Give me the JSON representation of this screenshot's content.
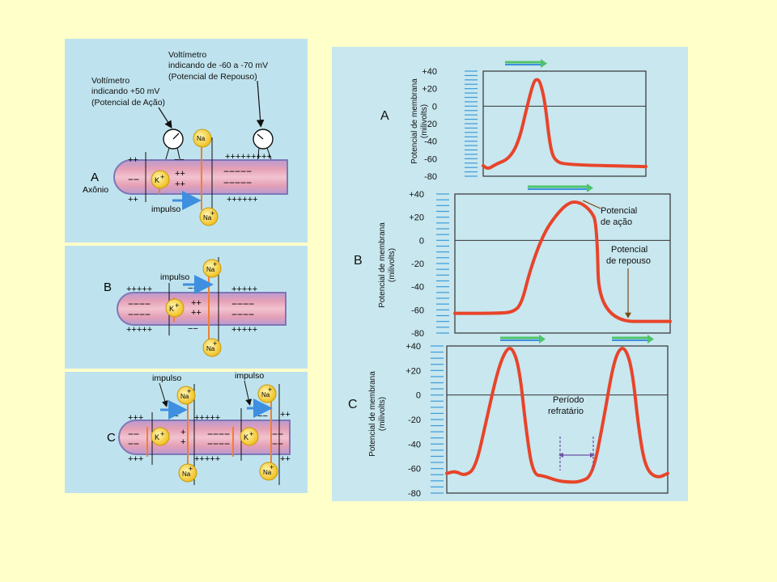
{
  "colors": {
    "background": "#ffffc9",
    "panel": "#bfe3ee",
    "axon_fill": "#e7a2b8",
    "axon_edge": "#7d77b6",
    "curve": "#e8442a",
    "ion": "#f3d43a",
    "arrow_green": "#4fc36a",
    "arrow_blue": "#3f8fe0"
  },
  "left_diagram": {
    "callout_rest": [
      "Voltímetro",
      "indicando de -60 a -70 mV",
      "(Potencial de Repouso)"
    ],
    "callout_action": [
      "Voltímetro",
      "indicando +50 mV",
      "(Potencial de Ação)"
    ],
    "axon_label": "Axônio",
    "panel_a": {
      "label": "A",
      "impulse": "impulso",
      "ion_k": "K",
      "ion_na": "Na",
      "top_left": "++",
      "top_right": "+++++++++",
      "mid_neg": "−−",
      "mid_pos1": "++",
      "mid_pos2": "++",
      "inside_neg": "−−−−−",
      "bot_left": "++",
      "bot_right": "++++++",
      "plus_sup": "+"
    },
    "panel_b": {
      "label": "B",
      "impulse": "impulso",
      "ion_k": "K",
      "ion_na": "Na",
      "top_left": "+++++",
      "top_right": "+++++",
      "top_neg": "−−",
      "in_left": "−−−−",
      "in_pos1": "++",
      "in_pos2": "++",
      "in_right": "−−−−",
      "bot_left": "+++++",
      "bot_right": "+++++",
      "bot_neg": "−−",
      "plus_sup": "+"
    },
    "panel_c": {
      "label": "C",
      "impulse_1": "impulso",
      "impulse_2": "impulso",
      "ion_k": "K",
      "ion_na": "Na",
      "top_left": "+++",
      "top_neg1": "−−",
      "top_mid": "+++++",
      "top_neg2": "−−",
      "top_right": "++",
      "in_left": "−−",
      "in_pos1": "+",
      "in_pos2": "+",
      "in_mid": "−−−−",
      "in_right": "−−",
      "bot_left": "+++",
      "bot_mid": "+++++",
      "bot_right": "++",
      "plus_sup": "+"
    }
  },
  "chart_data": [
    {
      "type": "line",
      "panel_label": "A",
      "ylabel": "Potencial de membrana (milivolts)",
      "yticks": [
        40,
        20,
        0,
        -20,
        -40,
        -60,
        -80
      ],
      "ytick_labels": [
        "+40",
        "+20",
        "0",
        "-20",
        "-40",
        "-60",
        "-80"
      ],
      "ylim": [
        -80,
        40
      ],
      "points": [
        [
          0,
          -68
        ],
        [
          3,
          -72
        ],
        [
          8,
          -66
        ],
        [
          16,
          -60
        ],
        [
          22,
          -40
        ],
        [
          27,
          0
        ],
        [
          31,
          28
        ],
        [
          33,
          31
        ],
        [
          35,
          28
        ],
        [
          38,
          5
        ],
        [
          41,
          -45
        ],
        [
          44,
          -63
        ],
        [
          52,
          -67
        ],
        [
          100,
          -69
        ]
      ],
      "annotations": []
    },
    {
      "type": "line",
      "panel_label": "B",
      "ylabel": "Potencial de membrana (milivolts)",
      "yticks": [
        40,
        20,
        0,
        -20,
        -40,
        -60,
        -80
      ],
      "ytick_labels": [
        "+40",
        "+20",
        "0",
        "-20",
        "-40",
        "-60",
        "-80"
      ],
      "ylim": [
        -80,
        40
      ],
      "points": [
        [
          0,
          -63
        ],
        [
          20,
          -63
        ],
        [
          27,
          -62
        ],
        [
          31,
          -55
        ],
        [
          35,
          -25
        ],
        [
          41,
          5
        ],
        [
          47,
          22
        ],
        [
          53,
          33
        ],
        [
          58,
          33
        ],
        [
          63,
          26
        ],
        [
          66,
          15
        ],
        [
          67,
          -70
        ],
        [
          100,
          -70
        ]
      ],
      "annotations": [
        {
          "label": "Potencial de ação",
          "x": 58,
          "y": 33
        },
        {
          "label": "Potencial de repouso",
          "x": 82,
          "y": -68
        }
      ]
    },
    {
      "type": "line",
      "panel_label": "C",
      "ylabel": "Potencial de membrana (milivolts)",
      "yticks": [
        40,
        20,
        0,
        -20,
        -40,
        -60,
        -80
      ],
      "ytick_labels": [
        "+40",
        "+20",
        "0",
        "-20",
        "-40",
        "-60",
        "-80"
      ],
      "ylim": [
        -80,
        40
      ],
      "points": [
        [
          0,
          -64
        ],
        [
          4,
          -62
        ],
        [
          8,
          -66
        ],
        [
          13,
          -60
        ],
        [
          18,
          -20
        ],
        [
          23,
          20
        ],
        [
          27,
          38
        ],
        [
          30,
          38
        ],
        [
          33,
          20
        ],
        [
          36,
          -30
        ],
        [
          39,
          -65
        ],
        [
          44,
          -66
        ],
        [
          50,
          -70
        ],
        [
          55,
          -71
        ],
        [
          60,
          -71
        ],
        [
          66,
          -66
        ],
        [
          71,
          -20
        ],
        [
          75,
          22
        ],
        [
          78,
          38
        ],
        [
          81,
          38
        ],
        [
          84,
          20
        ],
        [
          87,
          -30
        ],
        [
          90,
          -60
        ],
        [
          95,
          -68
        ],
        [
          100,
          -64
        ]
      ],
      "annotations": [
        {
          "label": "Período refratário",
          "x": 60,
          "y": -60
        }
      ]
    }
  ]
}
